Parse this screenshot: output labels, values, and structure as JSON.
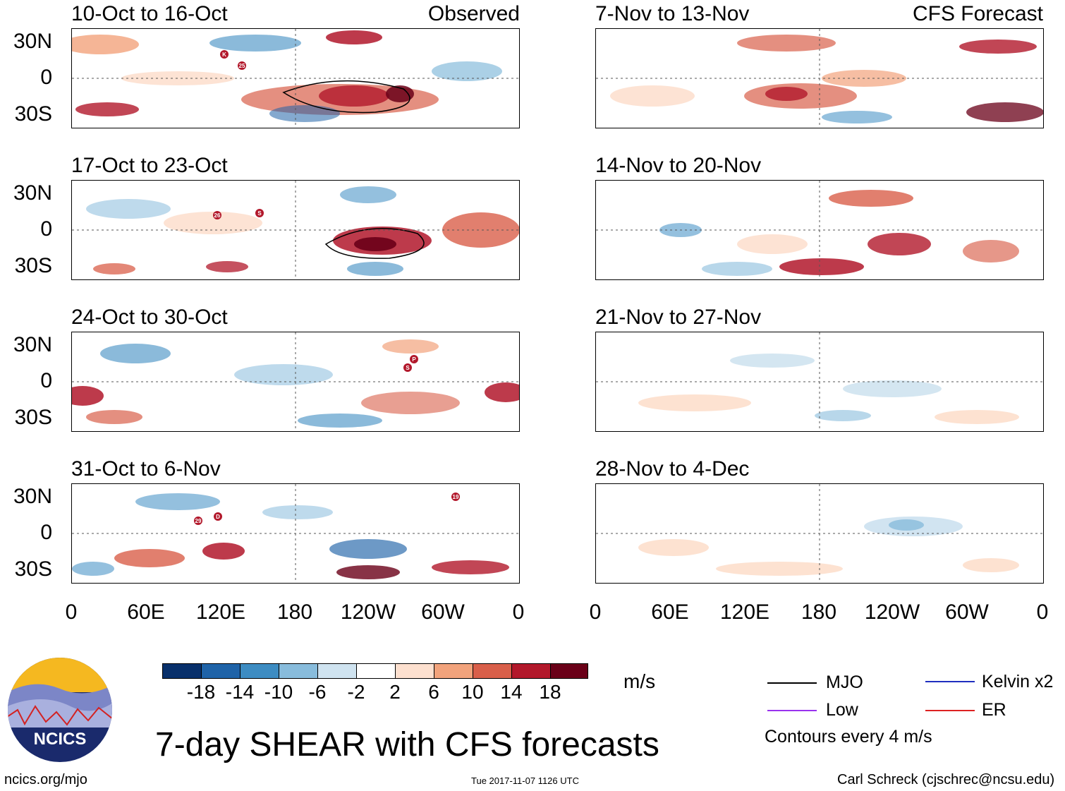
{
  "colors": {
    "scale": [
      "#08306b",
      "#1f63a8",
      "#3d8cc2",
      "#88bcdc",
      "#cfe3f0",
      "#ffffff",
      "#fde0cf",
      "#f2a37c",
      "#d95f4a",
      "#b2182b",
      "#6a0018"
    ],
    "mjo": "#000000",
    "kelvin": "#1f2fbf",
    "low": "#9933ee",
    "er": "#dd2222",
    "logo_dark": "#1a2a6c",
    "logo_sun": "#f5b820"
  },
  "panels": [
    {
      "title": "10-Oct to 16-Oct",
      "tag": "Observed"
    },
    {
      "title": "17-Oct to 23-Oct",
      "tag": ""
    },
    {
      "title": "24-Oct to 30-Oct",
      "tag": ""
    },
    {
      "title": "31-Oct to 6-Nov",
      "tag": ""
    },
    {
      "title": "7-Nov to 13-Nov",
      "tag": "CFS Forecast"
    },
    {
      "title": "14-Nov to 20-Nov",
      "tag": ""
    },
    {
      "title": "21-Nov to 27-Nov",
      "tag": ""
    },
    {
      "title": "28-Nov to 4-Dec",
      "tag": ""
    }
  ],
  "y_labels": [
    "30N",
    "0",
    "30S"
  ],
  "x_labels": [
    "0",
    "60E",
    "120E",
    "180",
    "120W",
    "60W",
    "0"
  ],
  "colorbar": {
    "labels": [
      "-18",
      "-14",
      "-10",
      "-6",
      "-2",
      "2",
      "6",
      "10",
      "14",
      "18"
    ],
    "units": "m/s"
  },
  "legend": {
    "mjo": "MJO",
    "kelvin": "Kelvin x2",
    "low": "Low",
    "er": "ER",
    "note": "Contours every 4 m/s"
  },
  "storm_markers": [
    "K",
    "25",
    "26",
    "S",
    "P",
    "S",
    "29",
    "D",
    "19"
  ],
  "logo_text": "NCICS",
  "main_title": "7-day SHEAR with CFS forecasts",
  "footer": {
    "left": "ncics.org/mjo",
    "center": "Tue 2017-11-07 1126 UTC",
    "right": "Carl Schreck (cjschrec@ncsu.edu)"
  }
}
